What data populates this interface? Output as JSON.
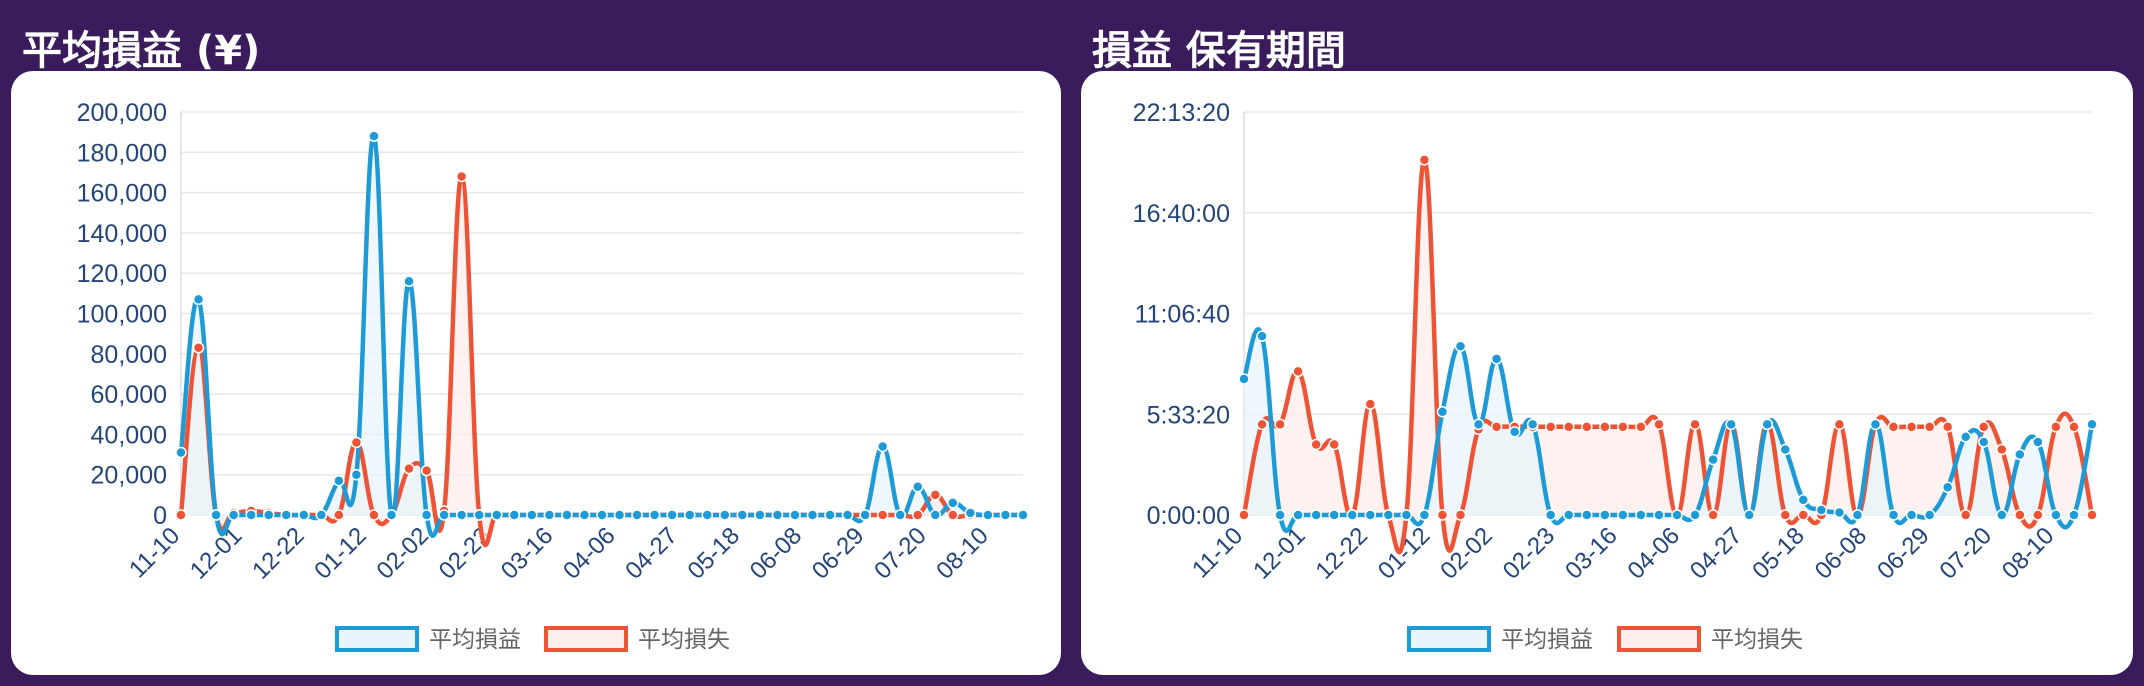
{
  "panels": {
    "left": {
      "title": "平均損益 (¥)"
    },
    "right": {
      "title": "損益 保有期間"
    }
  },
  "colors": {
    "background": "#3a1c5c",
    "profit": "#1e9bd7",
    "loss": "#ee5336",
    "profit_fill": "#e7f4fb",
    "loss_fill": "#fdeeeb"
  },
  "chart_data": [
    {
      "type": "line",
      "title": "平均損益 (¥)",
      "x_tick_labels": [
        "11-10",
        "12-01",
        "12-22",
        "01-12",
        "02-02",
        "02-23",
        "03-16",
        "04-06",
        "04-27",
        "05-18",
        "06-08",
        "06-29",
        "07-20",
        "08-10"
      ],
      "y_tick_labels": [
        "0",
        "20,000",
        "40,000",
        "60,000",
        "80,000",
        "100,000",
        "120,000",
        "140,000",
        "160,000",
        "180,000",
        "200,000"
      ],
      "ylim": [
        0,
        200000
      ],
      "grid": true,
      "legend_position": "bottom",
      "series": [
        {
          "name": "平均損益",
          "values": [
            31000,
            107000,
            0,
            0,
            0,
            0,
            0,
            0,
            0,
            17000,
            20000,
            188000,
            0,
            116000,
            0,
            0,
            0,
            0,
            0,
            0,
            0,
            0,
            0,
            0,
            0,
            0,
            0,
            0,
            0,
            0,
            0,
            0,
            0,
            0,
            0,
            0,
            0,
            0,
            0,
            0,
            34000,
            0,
            14000,
            0,
            6000,
            1000,
            0,
            0,
            0
          ]
        },
        {
          "name": "平均損失",
          "values": [
            0,
            83000,
            0,
            1000,
            2000,
            1000,
            0,
            0,
            0,
            0,
            36000,
            0,
            0,
            23000,
            22000,
            2000,
            168000,
            0,
            0,
            0,
            0,
            0,
            0,
            0,
            0,
            0,
            0,
            0,
            0,
            0,
            0,
            0,
            0,
            0,
            0,
            0,
            0,
            0,
            0,
            0,
            0,
            0,
            0,
            10000,
            0,
            0,
            0,
            0,
            0
          ]
        }
      ]
    },
    {
      "type": "line",
      "title": "損益 保有期間",
      "x_tick_labels": [
        "11-10",
        "12-01",
        "12-22",
        "01-12",
        "02-02",
        "02-23",
        "03-16",
        "04-06",
        "04-27",
        "05-18",
        "06-08",
        "06-29",
        "07-20",
        "08-10"
      ],
      "y_tick_labels": [
        "0:00:00",
        "5:33:20",
        "11:06:40",
        "16:40:00",
        "22:13:20"
      ],
      "y_unit": "seconds",
      "ylim": [
        0,
        80000
      ],
      "grid": true,
      "legend_position": "bottom",
      "series": [
        {
          "name": "平均損益",
          "values": [
            27000,
            35500,
            0,
            0,
            0,
            0,
            0,
            0,
            0,
            0,
            0,
            20500,
            33500,
            18000,
            31000,
            16500,
            18000,
            0,
            0,
            0,
            0,
            0,
            0,
            0,
            0,
            0,
            11000,
            18000,
            0,
            18000,
            13000,
            3000,
            1000,
            500,
            0,
            18000,
            0,
            0,
            0,
            5500,
            15500,
            14500,
            0,
            12000,
            14500,
            0,
            0,
            18000
          ]
        },
        {
          "name": "平均損失",
          "values": [
            0,
            18000,
            18000,
            28500,
            14000,
            14000,
            0,
            22000,
            0,
            0,
            70500,
            0,
            0,
            17000,
            17500,
            17500,
            17500,
            17500,
            17500,
            17500,
            17500,
            17500,
            17500,
            18000,
            0,
            18000,
            0,
            18000,
            0,
            18000,
            0,
            0,
            0,
            18000,
            0,
            18000,
            17500,
            17500,
            17500,
            17500,
            0,
            17500,
            13000,
            0,
            0,
            17500,
            17500,
            0
          ]
        }
      ]
    }
  ]
}
